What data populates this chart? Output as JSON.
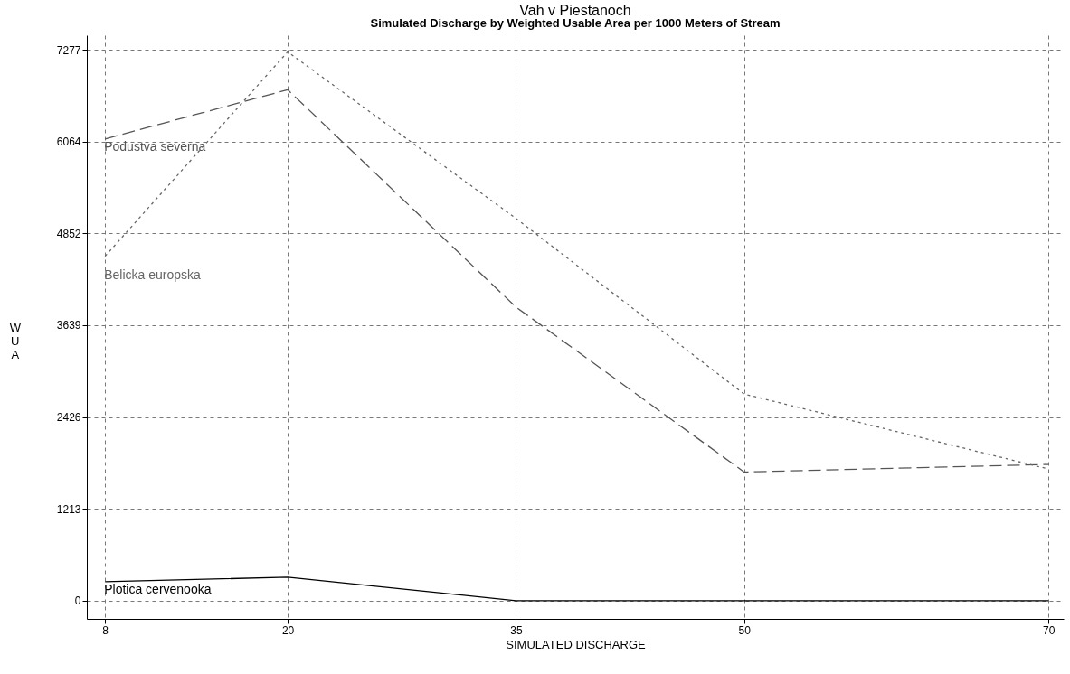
{
  "chart_data": {
    "type": "line",
    "title": "Vah v Piestanoch",
    "subtitle": "Simulated Discharge by Weighted Usable Area per 1000 Meters of Stream",
    "xlabel": "SIMULATED DISCHARGE",
    "ylabel": "WUA",
    "x": [
      8,
      20,
      35,
      50,
      70
    ],
    "series": [
      {
        "name": "Podustva severna",
        "color": "#555555",
        "line_style": "dashed",
        "values": [
          6100,
          6750,
          3880,
          1700,
          1800
        ]
      },
      {
        "name": "Belicka europska",
        "color": "#666666",
        "line_style": "dotted",
        "values": [
          4550,
          7250,
          5050,
          2730,
          1740
        ]
      },
      {
        "name": "Plotica cervenooka",
        "color": "#000000",
        "line_style": "solid",
        "values": [
          250,
          310,
          0,
          0,
          0
        ]
      }
    ],
    "xlim": [
      6.8,
      71
    ],
    "xticks": [
      8,
      20,
      35,
      50,
      70
    ],
    "ylim": [
      -240,
      7470
    ],
    "yticks": [
      0,
      1213,
      2426,
      3639,
      4852,
      6064,
      7277
    ],
    "grid": true,
    "marker": "none"
  }
}
